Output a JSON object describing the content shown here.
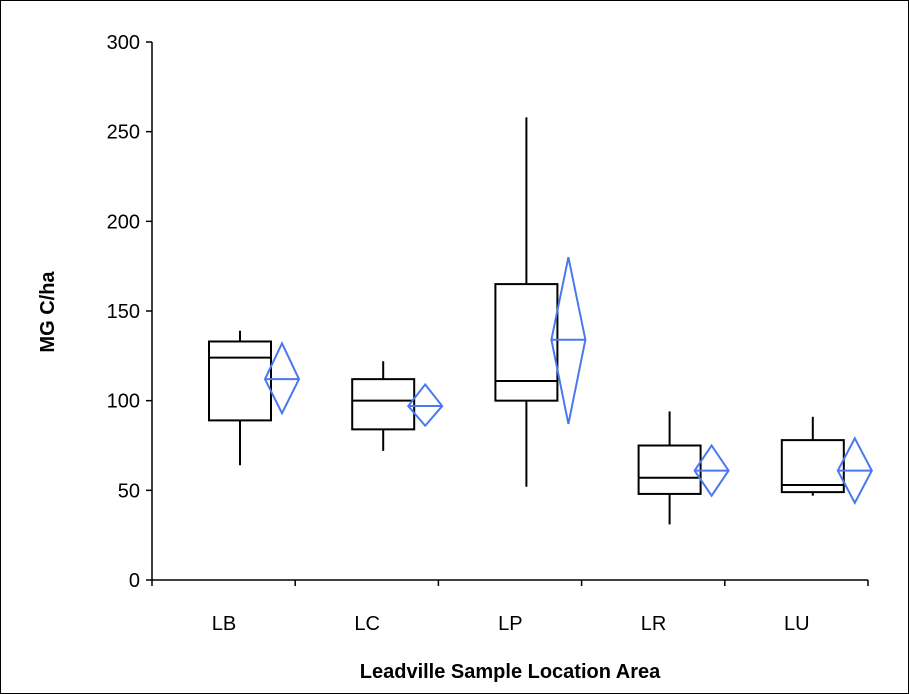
{
  "chart_data": {
    "type": "box",
    "title": "",
    "xlabel": "Leadville Sample Location Area",
    "ylabel": "MG C/ha",
    "ylim": [
      0,
      300
    ],
    "yticks": [
      0,
      50,
      100,
      150,
      200,
      250,
      300
    ],
    "categories": [
      "LB",
      "LC",
      "LP",
      "LR",
      "LU"
    ],
    "boxes": [
      {
        "category": "LB",
        "min": 64,
        "q1": 89,
        "median": 124,
        "q3": 133,
        "max": 139
      },
      {
        "category": "LC",
        "min": 72,
        "q1": 84,
        "median": 100,
        "q3": 112,
        "max": 122
      },
      {
        "category": "LP",
        "min": 52,
        "q1": 100,
        "median": 111,
        "q3": 165,
        "max": 258
      },
      {
        "category": "LR",
        "min": 31,
        "q1": 48,
        "median": 57,
        "q3": 75,
        "max": 94
      },
      {
        "category": "LU",
        "min": 47,
        "q1": 49,
        "median": 53,
        "q3": 78,
        "max": 91
      }
    ],
    "mean_diamonds": [
      {
        "category": "LB",
        "mean": 112,
        "lower": 93,
        "upper": 132
      },
      {
        "category": "LC",
        "mean": 97,
        "lower": 86,
        "upper": 109
      },
      {
        "category": "LP",
        "mean": 134,
        "lower": 87,
        "upper": 180
      },
      {
        "category": "LR",
        "mean": 61,
        "lower": 47,
        "upper": 75
      },
      {
        "category": "LU",
        "mean": 61,
        "lower": 43,
        "upper": 79
      }
    ],
    "colors": {
      "box": "#000000",
      "diamond": "#4a78f0"
    },
    "grid": false,
    "legend": "none"
  }
}
